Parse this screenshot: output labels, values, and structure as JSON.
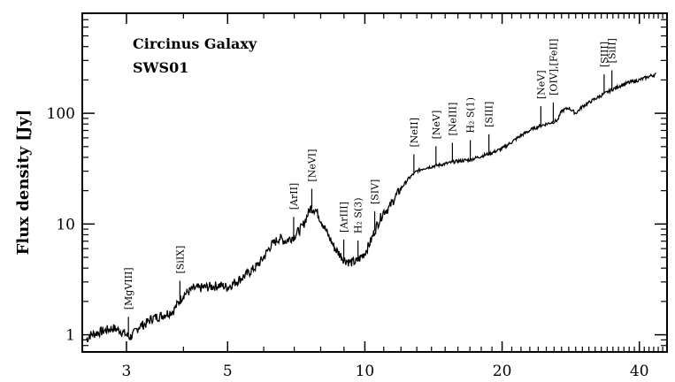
{
  "chart_data": {
    "type": "line",
    "title": "Circinus Galaxy",
    "subtitle": "SWS01",
    "ylabel": "Flux density [Jy]",
    "xlabel": "",
    "x_scale": "log",
    "y_scale": "log",
    "xlim": [
      2.4,
      46
    ],
    "ylim": [
      0.7,
      800
    ],
    "x_ticks": [
      3,
      5,
      10,
      20,
      40
    ],
    "x_tick_labels": [
      "3",
      "5",
      "10",
      "20",
      "40"
    ],
    "y_ticks": [
      1,
      10,
      100
    ],
    "y_tick_labels": [
      "1",
      "10",
      "100"
    ],
    "grid": false,
    "series": [
      {
        "x": [
          2.45,
          2.5,
          2.6,
          2.7,
          2.8,
          2.9,
          3.0,
          3.05,
          3.1,
          3.2,
          3.3,
          3.4,
          3.6,
          3.8,
          4.0,
          4.2,
          4.5,
          4.8,
          5.0,
          5.2,
          5.5,
          5.8,
          6.0,
          6.2,
          6.5,
          6.7,
          7.0,
          7.3,
          7.6,
          7.8,
          8.0,
          8.3,
          8.6,
          9.0,
          9.3,
          9.6,
          10.0,
          10.3,
          10.6,
          11.0,
          11.3,
          11.6,
          12.0,
          12.5,
          13.0,
          13.5,
          14.0,
          15.0,
          16.0,
          17.0,
          18.0,
          19.0,
          20.0,
          21.0,
          22.0,
          23.0,
          24.0,
          25.0,
          26.0,
          26.5,
          27.0,
          28.0,
          29.0,
          30.0,
          31.0,
          32.0,
          33.0,
          34.0,
          35.0,
          36.0,
          38.0,
          40.0,
          42.0,
          43.5
        ],
        "y": [
          0.9,
          1.0,
          1.05,
          1.1,
          1.15,
          1.1,
          1.0,
          0.95,
          1.0,
          1.2,
          1.25,
          1.4,
          1.5,
          1.65,
          2.3,
          2.6,
          2.7,
          2.8,
          2.7,
          3.0,
          3.5,
          4.2,
          5.0,
          6.3,
          7.5,
          7.0,
          7.8,
          9.5,
          14.0,
          13.5,
          11.0,
          8.0,
          6.0,
          4.8,
          4.5,
          4.6,
          5.5,
          7.0,
          9.5,
          13.0,
          14.0,
          17.0,
          21.0,
          26.0,
          30.0,
          32.0,
          33.0,
          35.0,
          37.0,
          38.0,
          41.0,
          44.0,
          48.0,
          55.0,
          63.0,
          70.0,
          76.0,
          80.0,
          84.0,
          87.0,
          105.0,
          112.0,
          100.0,
          115.0,
          125.0,
          135.0,
          145.0,
          155.0,
          165.0,
          175.0,
          190.0,
          200.0,
          215.0,
          225.0
        ]
      }
    ],
    "annotations": [
      {
        "text": "[MgVIII]",
        "x": 3.03
      },
      {
        "text": "[SiIX]",
        "x": 3.93
      },
      {
        "text": "[ArII]",
        "x": 6.98
      },
      {
        "text": "[NeVI]",
        "x": 7.65
      },
      {
        "text": "[ArIII]",
        "x": 8.99
      },
      {
        "text": "H₂ S(3)",
        "x": 9.66
      },
      {
        "text": "[SIV]",
        "x": 10.51
      },
      {
        "text": "[NeII]",
        "x": 12.81
      },
      {
        "text": "[NeV]",
        "x": 14.32
      },
      {
        "text": "[NeIII]",
        "x": 15.56
      },
      {
        "text": "H₂ S(1)",
        "x": 17.03
      },
      {
        "text": "[SIII]",
        "x": 18.71
      },
      {
        "text": "[NeV]",
        "x": 24.32
      },
      {
        "text": "[OIV],[FeII]",
        "x": 25.9
      },
      {
        "text": "[SIII]",
        "x": 33.48
      },
      {
        "text": "[SiII]",
        "x": 34.82
      }
    ],
    "colors": {
      "axis": "#000000",
      "line": "#000000",
      "background": "#ffffff"
    }
  }
}
